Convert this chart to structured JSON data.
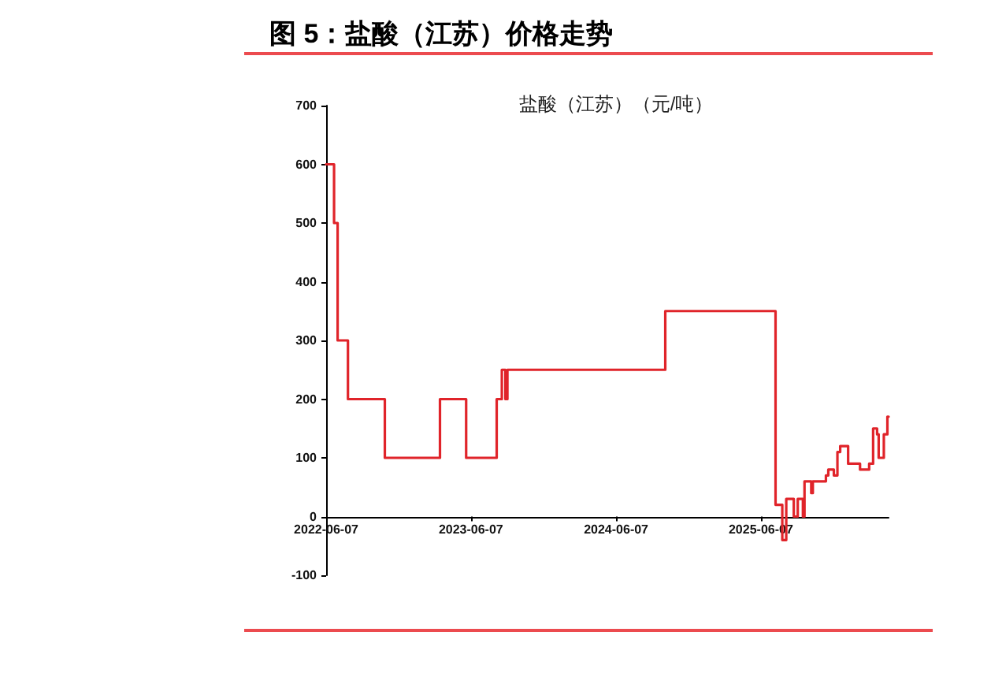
{
  "chart_data": {
    "type": "step",
    "title": "图 5：盐酸（江苏）价格走势",
    "subtitle": "盐酸（江苏）（元/吨）",
    "x": [
      "2022-06-07",
      "2022-06-27",
      "2022-07-06",
      "2022-08-01",
      "2022-11-02",
      "2023-03-21",
      "2023-05-26",
      "2023-08-11",
      "2023-08-24",
      "2023-09-02",
      "2023-09-07",
      "2024-10-09",
      "2025-07-14",
      "2025-07-31",
      "2025-08-10",
      "2025-08-29",
      "2025-09-08",
      "2025-09-21",
      "2025-09-25",
      "2025-10-12",
      "2025-10-16",
      "2025-11-18",
      "2025-11-24",
      "2025-12-08",
      "2025-12-17",
      "2025-12-24",
      "2026-01-13",
      "2026-02-12",
      "2026-03-07",
      "2026-03-17",
      "2026-03-27",
      "2026-03-31",
      "2026-04-13",
      "2026-04-22",
      "2026-04-25"
    ],
    "values": [
      600,
      500,
      300,
      200,
      100,
      200,
      100,
      200,
      250,
      200,
      250,
      350,
      20,
      -40,
      30,
      0,
      30,
      0,
      60,
      40,
      60,
      70,
      80,
      70,
      110,
      120,
      90,
      80,
      90,
      150,
      140,
      100,
      140,
      170,
      170
    ],
    "color": "#e0242a",
    "xlim": [
      "2022-06-07",
      "2026-04-25"
    ],
    "xticks": [
      "2022-06-07",
      "2023-06-07",
      "2024-06-07",
      "2025-06-07"
    ],
    "ylim": [
      -100,
      700
    ],
    "yticks": [
      -100,
      0,
      100,
      200,
      300,
      400,
      500,
      600,
      700
    ]
  }
}
